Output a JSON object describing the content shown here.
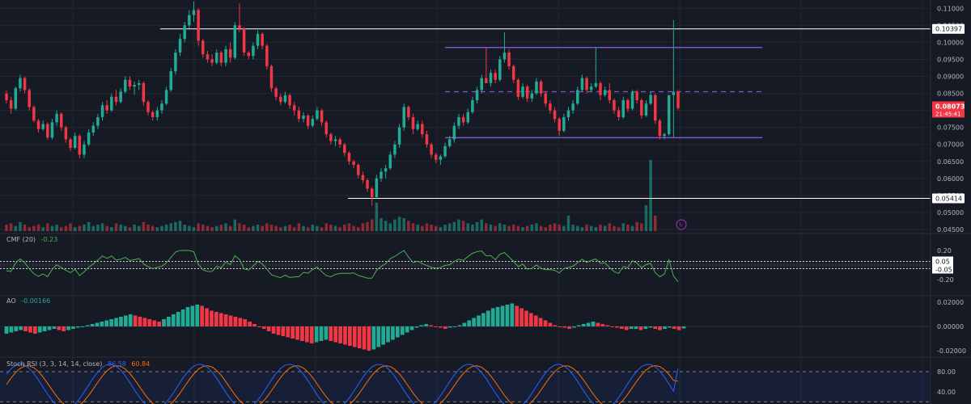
{
  "colors": {
    "background": "#161a25",
    "grid": "#222631",
    "bull": "#22ab94",
    "bear": "#f23645",
    "purple": "#7e57c2",
    "white_line": "#ffffff",
    "cmf": "#4caf50",
    "rsi_k": "#2962ff",
    "rsi_d": "#ff6d00",
    "axis_text": "#b2b5be"
  },
  "price_axis": {
    "ticks": [
      "0.11000",
      "0.10500",
      "0.10000",
      "0.09500",
      "0.09000",
      "0.08500",
      "0.08000",
      "0.07500",
      "0.07000",
      "0.06500",
      "0.06000",
      "0.05500",
      "0.05000",
      "0.04500"
    ],
    "badges": [
      {
        "text": "0.10397",
        "value": 0.10397,
        "style": "white"
      },
      {
        "text": "0.08073",
        "value": 0.08073,
        "style": "red",
        "sub": "21:45:41"
      },
      {
        "text": "0.05414",
        "value": 0.05414,
        "style": "white"
      }
    ]
  },
  "indicators": {
    "cmf": {
      "name": "CMF (20)",
      "value": "-0.23",
      "ticks": [
        "0.20",
        "-0.20"
      ],
      "badges": [
        "0.05",
        "-0.05"
      ]
    },
    "ao": {
      "name": "AO",
      "value": "-0.00166",
      "ticks": [
        "0.02000",
        "0.00000",
        "-0.02000"
      ]
    },
    "rsi": {
      "name": "Stoch RSI (3, 3, 14, 14, close)",
      "k": "86.58",
      "d": "60.84",
      "ticks": [
        "80.00",
        "40.00"
      ]
    }
  },
  "chart_data": [
    {
      "type": "candlestick",
      "title": "",
      "ylim": [
        0.045,
        0.1115
      ],
      "candles": [
        [
          0.0849,
          0.086,
          0.082,
          0.083
        ],
        [
          0.083,
          0.084,
          0.079,
          0.0805
        ],
        [
          0.0805,
          0.087,
          0.08,
          0.0865
        ],
        [
          0.0865,
          0.0905,
          0.0855,
          0.0895
        ],
        [
          0.0895,
          0.09,
          0.085,
          0.086
        ],
        [
          0.086,
          0.0865,
          0.08,
          0.081
        ],
        [
          0.081,
          0.0815,
          0.0765,
          0.077
        ],
        [
          0.077,
          0.0775,
          0.0735,
          0.0745
        ],
        [
          0.0745,
          0.077,
          0.074,
          0.076
        ],
        [
          0.076,
          0.0765,
          0.0715,
          0.072
        ],
        [
          0.072,
          0.0775,
          0.0715,
          0.0765
        ],
        [
          0.0765,
          0.08,
          0.0755,
          0.079
        ],
        [
          0.079,
          0.0795,
          0.074,
          0.075
        ],
        [
          0.075,
          0.0755,
          0.0705,
          0.0715
        ],
        [
          0.0715,
          0.072,
          0.068,
          0.069
        ],
        [
          0.069,
          0.0735,
          0.0685,
          0.0725
        ],
        [
          0.0725,
          0.073,
          0.066,
          0.067
        ],
        [
          0.067,
          0.071,
          0.066,
          0.07
        ],
        [
          0.07,
          0.0745,
          0.0695,
          0.0735
        ],
        [
          0.0735,
          0.0765,
          0.0725,
          0.0755
        ],
        [
          0.0755,
          0.079,
          0.0745,
          0.078
        ],
        [
          0.078,
          0.0825,
          0.077,
          0.0815
        ],
        [
          0.0815,
          0.083,
          0.079,
          0.08
        ],
        [
          0.08,
          0.085,
          0.0795,
          0.084
        ],
        [
          0.084,
          0.086,
          0.0815,
          0.0825
        ],
        [
          0.0825,
          0.0865,
          0.082,
          0.0855
        ],
        [
          0.0855,
          0.09,
          0.085,
          0.089
        ],
        [
          0.089,
          0.09,
          0.086,
          0.087
        ],
        [
          0.087,
          0.0885,
          0.0845,
          0.0875
        ],
        [
          0.0875,
          0.089,
          0.086,
          0.088
        ],
        [
          0.088,
          0.0885,
          0.0815,
          0.0825
        ],
        [
          0.0825,
          0.083,
          0.0785,
          0.0795
        ],
        [
          0.0795,
          0.08,
          0.077,
          0.078
        ],
        [
          0.078,
          0.081,
          0.077,
          0.08
        ],
        [
          0.08,
          0.083,
          0.079,
          0.082
        ],
        [
          0.082,
          0.087,
          0.0815,
          0.086
        ],
        [
          0.086,
          0.0925,
          0.0855,
          0.0915
        ],
        [
          0.0915,
          0.098,
          0.0905,
          0.097
        ],
        [
          0.097,
          0.1025,
          0.096,
          0.101
        ],
        [
          0.101,
          0.106,
          0.1,
          0.105
        ],
        [
          0.105,
          0.1095,
          0.104,
          0.108
        ],
        [
          0.108,
          0.112,
          0.106,
          0.1095
        ],
        [
          0.1095,
          0.11,
          0.099,
          0.1005
        ],
        [
          0.1005,
          0.101,
          0.0955,
          0.0965
        ],
        [
          0.0965,
          0.0975,
          0.094,
          0.095
        ],
        [
          0.095,
          0.0965,
          0.093,
          0.094
        ],
        [
          0.094,
          0.098,
          0.0935,
          0.097
        ],
        [
          0.097,
          0.0975,
          0.093,
          0.094
        ],
        [
          0.094,
          0.099,
          0.093,
          0.098
        ],
        [
          0.098,
          0.1,
          0.094,
          0.0955
        ],
        [
          0.0955,
          0.106,
          0.095,
          0.105
        ],
        [
          0.105,
          0.1115,
          0.103,
          0.104
        ],
        [
          0.104,
          0.1045,
          0.096,
          0.097
        ],
        [
          0.097,
          0.0975,
          0.095,
          0.096
        ],
        [
          0.096,
          0.1,
          0.095,
          0.099
        ],
        [
          0.099,
          0.1035,
          0.098,
          0.1025
        ],
        [
          0.1025,
          0.103,
          0.098,
          0.099
        ],
        [
          0.099,
          0.0995,
          0.092,
          0.093
        ],
        [
          0.093,
          0.0935,
          0.0855,
          0.0865
        ],
        [
          0.0865,
          0.087,
          0.083,
          0.084
        ],
        [
          0.084,
          0.085,
          0.0815,
          0.0825
        ],
        [
          0.0825,
          0.0855,
          0.082,
          0.0845
        ],
        [
          0.0845,
          0.085,
          0.0805,
          0.0815
        ],
        [
          0.0815,
          0.0825,
          0.0785,
          0.08
        ],
        [
          0.08,
          0.081,
          0.0765,
          0.0775
        ],
        [
          0.0775,
          0.0795,
          0.0765,
          0.0785
        ],
        [
          0.0785,
          0.079,
          0.0745,
          0.0755
        ],
        [
          0.0755,
          0.0785,
          0.075,
          0.0775
        ],
        [
          0.0775,
          0.081,
          0.077,
          0.08
        ],
        [
          0.08,
          0.0805,
          0.0755,
          0.0765
        ],
        [
          0.0765,
          0.077,
          0.072,
          0.073
        ],
        [
          0.073,
          0.0735,
          0.07,
          0.071
        ],
        [
          0.071,
          0.0725,
          0.0695,
          0.0715
        ],
        [
          0.0715,
          0.072,
          0.069,
          0.07
        ],
        [
          0.07,
          0.0705,
          0.0665,
          0.0675
        ],
        [
          0.0675,
          0.068,
          0.064,
          0.065
        ],
        [
          0.065,
          0.0655,
          0.063,
          0.064
        ],
        [
          0.064,
          0.0645,
          0.06,
          0.061
        ],
        [
          0.061,
          0.062,
          0.0585,
          0.0595
        ],
        [
          0.0595,
          0.06,
          0.056,
          0.057
        ],
        [
          0.057,
          0.0575,
          0.052,
          0.0545
        ],
        [
          0.0545,
          0.061,
          0.054,
          0.06
        ],
        [
          0.06,
          0.063,
          0.059,
          0.062
        ],
        [
          0.062,
          0.064,
          0.06,
          0.063
        ],
        [
          0.063,
          0.068,
          0.0625,
          0.067
        ],
        [
          0.067,
          0.071,
          0.066,
          0.07
        ],
        [
          0.07,
          0.076,
          0.069,
          0.075
        ],
        [
          0.075,
          0.082,
          0.074,
          0.081
        ],
        [
          0.081,
          0.0815,
          0.077,
          0.078
        ],
        [
          0.078,
          0.079,
          0.073,
          0.0745
        ],
        [
          0.0745,
          0.077,
          0.074,
          0.076
        ],
        [
          0.076,
          0.077,
          0.072,
          0.073
        ],
        [
          0.073,
          0.074,
          0.069,
          0.07
        ],
        [
          0.07,
          0.0705,
          0.066,
          0.067
        ],
        [
          0.067,
          0.0675,
          0.0645,
          0.0655
        ],
        [
          0.0655,
          0.067,
          0.064,
          0.0665
        ],
        [
          0.0665,
          0.0705,
          0.066,
          0.0695
        ],
        [
          0.0695,
          0.0725,
          0.069,
          0.0715
        ],
        [
          0.0715,
          0.0765,
          0.0705,
          0.0755
        ],
        [
          0.0755,
          0.079,
          0.0745,
          0.078
        ],
        [
          0.078,
          0.079,
          0.0755,
          0.0765
        ],
        [
          0.0765,
          0.0805,
          0.076,
          0.0795
        ],
        [
          0.0795,
          0.084,
          0.079,
          0.083
        ],
        [
          0.083,
          0.087,
          0.082,
          0.086
        ],
        [
          0.086,
          0.0905,
          0.085,
          0.0895
        ],
        [
          0.0895,
          0.0985,
          0.088,
          0.088
        ],
        [
          0.088,
          0.092,
          0.087,
          0.091
        ],
        [
          0.091,
          0.092,
          0.088,
          0.089
        ],
        [
          0.089,
          0.096,
          0.0885,
          0.095
        ],
        [
          0.095,
          0.103,
          0.094,
          0.097
        ],
        [
          0.097,
          0.098,
          0.092,
          0.093
        ],
        [
          0.093,
          0.0935,
          0.088,
          0.089
        ],
        [
          0.089,
          0.0895,
          0.083,
          0.084
        ],
        [
          0.084,
          0.088,
          0.0835,
          0.087
        ],
        [
          0.087,
          0.0875,
          0.0825,
          0.0835
        ],
        [
          0.0835,
          0.086,
          0.0825,
          0.085
        ],
        [
          0.085,
          0.0895,
          0.0845,
          0.0885
        ],
        [
          0.0885,
          0.089,
          0.084,
          0.085
        ],
        [
          0.085,
          0.0855,
          0.081,
          0.082
        ],
        [
          0.082,
          0.083,
          0.079,
          0.08
        ],
        [
          0.08,
          0.081,
          0.0765,
          0.0775
        ],
        [
          0.0775,
          0.078,
          0.0725,
          0.074
        ],
        [
          0.074,
          0.079,
          0.0735,
          0.078
        ],
        [
          0.078,
          0.081,
          0.077,
          0.08
        ],
        [
          0.08,
          0.083,
          0.079,
          0.082
        ],
        [
          0.082,
          0.087,
          0.0815,
          0.086
        ],
        [
          0.086,
          0.0905,
          0.0855,
          0.0895
        ],
        [
          0.0895,
          0.09,
          0.085,
          0.086
        ],
        [
          0.086,
          0.088,
          0.0855,
          0.087
        ],
        [
          0.087,
          0.0985,
          0.0865,
          0.088
        ],
        [
          0.088,
          0.0885,
          0.083,
          0.0845
        ],
        [
          0.0845,
          0.087,
          0.084,
          0.086
        ],
        [
          0.086,
          0.088,
          0.082,
          0.083
        ],
        [
          0.083,
          0.0835,
          0.079,
          0.08
        ],
        [
          0.08,
          0.081,
          0.077,
          0.078
        ],
        [
          0.078,
          0.084,
          0.0775,
          0.083
        ],
        [
          0.083,
          0.0835,
          0.0795,
          0.0805
        ],
        [
          0.0805,
          0.086,
          0.08,
          0.0855
        ],
        [
          0.0855,
          0.086,
          0.082,
          0.083
        ],
        [
          0.083,
          0.0835,
          0.0775,
          0.0785
        ],
        [
          0.0785,
          0.083,
          0.078,
          0.082
        ],
        [
          0.082,
          0.0855,
          0.0815,
          0.0845
        ],
        [
          0.0845,
          0.085,
          0.076,
          0.077
        ],
        [
          0.077,
          0.0775,
          0.0715,
          0.0725
        ],
        [
          0.0725,
          0.0735,
          0.0715,
          0.073
        ],
        [
          0.073,
          0.084,
          0.0725,
          0.0845
        ],
        [
          0.0845,
          0.1065,
          0.072,
          0.0855
        ],
        [
          0.0855,
          0.086,
          0.08,
          0.0807
        ]
      ],
      "volume": [
        5,
        6,
        4,
        7,
        5,
        3,
        4,
        5,
        3,
        6,
        4,
        5,
        3,
        4,
        6,
        3,
        4,
        5,
        7,
        4,
        5,
        6,
        4,
        3,
        6,
        5,
        4,
        3,
        5,
        4,
        7,
        5,
        4,
        3,
        4,
        5,
        6,
        7,
        8,
        5,
        4,
        3,
        6,
        5,
        4,
        3,
        4,
        5,
        6,
        4,
        9,
        6,
        5,
        3,
        4,
        5,
        4,
        6,
        5,
        4,
        3,
        4,
        5,
        3,
        6,
        4,
        3,
        5,
        4,
        3,
        6,
        5,
        4,
        3,
        5,
        6,
        4,
        3,
        6,
        7,
        9,
        22,
        10,
        8,
        6,
        9,
        11,
        10,
        8,
        6,
        5,
        4,
        6,
        5,
        4,
        3,
        5,
        6,
        7,
        9,
        8,
        6,
        5,
        7,
        9,
        6,
        5,
        4,
        6,
        5,
        4,
        5,
        4,
        3,
        4,
        5,
        6,
        4,
        3,
        5,
        6,
        5,
        4,
        12,
        5,
        4,
        3,
        5,
        4,
        3,
        5,
        4,
        6,
        4,
        3,
        6,
        5,
        4,
        7,
        6,
        20,
        55,
        12
      ],
      "ao": [
        -0.006,
        -0.005,
        -0.004,
        -0.003,
        -0.004,
        -0.005,
        -0.006,
        -0.005,
        -0.004,
        -0.003,
        -0.002,
        -0.003,
        -0.004,
        -0.003,
        -0.002,
        -0.001,
        0.0,
        0.001,
        0.002,
        0.003,
        0.004,
        0.005,
        0.006,
        0.007,
        0.008,
        0.009,
        0.01,
        0.009,
        0.008,
        0.007,
        0.006,
        0.005,
        0.004,
        0.006,
        0.008,
        0.01,
        0.012,
        0.014,
        0.016,
        0.017,
        0.018,
        0.017,
        0.015,
        0.013,
        0.012,
        0.011,
        0.01,
        0.009,
        0.008,
        0.007,
        0.006,
        0.004,
        0.002,
        0.0,
        -0.002,
        -0.004,
        -0.006,
        -0.007,
        -0.008,
        -0.009,
        -0.01,
        -0.011,
        -0.012,
        -0.013,
        -0.014,
        -0.013,
        -0.012,
        -0.011,
        -0.012,
        -0.013,
        -0.014,
        -0.015,
        -0.016,
        -0.017,
        -0.018,
        -0.019,
        -0.02,
        -0.019,
        -0.017,
        -0.015,
        -0.013,
        -0.011,
        -0.009,
        -0.007,
        -0.005,
        -0.003,
        -0.001,
        0.001,
        0.002,
        0.001,
        0.0,
        -0.001,
        -0.002,
        -0.001,
        0.0,
        0.001,
        0.003,
        0.005,
        0.007,
        0.009,
        0.011,
        0.013,
        0.015,
        0.016,
        0.017,
        0.018,
        0.019,
        0.017,
        0.015,
        0.013,
        0.011,
        0.009,
        0.007,
        0.005,
        0.003,
        0.001,
        0.0,
        -0.001,
        -0.002,
        -0.001,
        0.001,
        0.002,
        0.003,
        0.004,
        0.003,
        0.002,
        0.001,
        0.0,
        -0.001,
        -0.002,
        -0.003,
        -0.002,
        -0.002,
        -0.003,
        -0.002,
        -0.001,
        -0.002,
        -0.003,
        -0.002,
        -0.001,
        -0.002,
        -0.003,
        -0.00166
      ]
    }
  ]
}
